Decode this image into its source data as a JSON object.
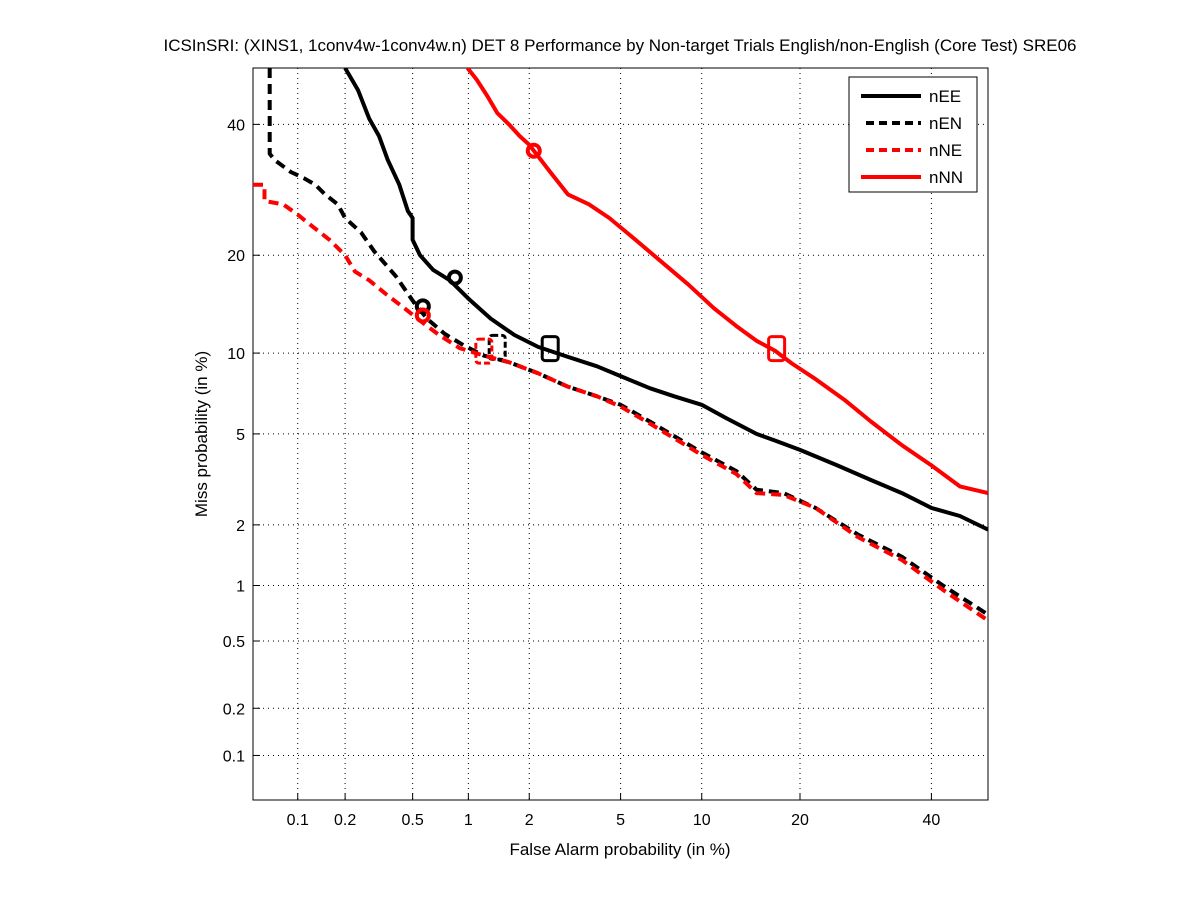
{
  "chart_data": {
    "type": "line",
    "scale": "normal-deviate",
    "title": "ICSInSRI: (XINS1, 1conv4w-1conv4w.n) DET 8 Performance by Non-target Trials English/non-English (Core Test) SRE06",
    "xlabel": "False Alarm probability (in %)",
    "ylabel": "Miss probability (in %)",
    "xlim": [
      0.05,
      50
    ],
    "ylim": [
      0.05,
      50
    ],
    "xticks": [
      0.1,
      0.2,
      0.5,
      1,
      2,
      5,
      10,
      20,
      40
    ],
    "xtick_labels": [
      "0.1",
      "0.2",
      "0.5",
      "1",
      "2",
      "5",
      "10",
      "20",
      "40"
    ],
    "yticks": [
      0.1,
      0.2,
      0.5,
      1,
      2,
      5,
      10,
      20,
      40
    ],
    "ytick_labels": [
      "0.1",
      "0.2",
      "0.5",
      "1",
      "2",
      "5",
      "10",
      "20",
      "40"
    ],
    "grid": true,
    "legend_position": "top-right",
    "series": [
      {
        "name": "nEE",
        "color": "#000000",
        "style": "solid",
        "x": [
          0.2,
          0.24,
          0.28,
          0.32,
          0.36,
          0.42,
          0.47,
          0.5,
          0.5,
          0.55,
          0.65,
          0.8,
          1.0,
          1.3,
          1.7,
          2.2,
          3,
          4,
          5,
          6.5,
          8,
          10,
          12,
          15,
          17,
          20,
          25,
          30,
          35,
          40,
          45,
          50
        ],
        "y": [
          50,
          46,
          41,
          38,
          34,
          30,
          26,
          25,
          22,
          20,
          18.2,
          17,
          15,
          13,
          11.5,
          10.5,
          9.7,
          9,
          8.3,
          7.5,
          7.0,
          6.5,
          5.8,
          5.0,
          4.7,
          4.3,
          3.7,
          3.2,
          2.8,
          2.4,
          2.2,
          1.9
        ],
        "markers": [
          {
            "type": "circle",
            "x": 0.85,
            "y": 17.3
          },
          {
            "type": "square",
            "x": 2.5,
            "y": 10.2
          }
        ]
      },
      {
        "name": "nEN",
        "color": "#000000",
        "style": "dashed",
        "x": [
          0.065,
          0.065,
          0.07,
          0.09,
          0.11,
          0.13,
          0.15,
          0.18,
          0.2,
          0.25,
          0.3,
          0.4,
          0.5,
          0.6,
          0.75,
          0.95,
          1.2,
          1.6,
          2.2,
          3,
          4,
          5,
          6.5,
          8,
          10,
          13,
          15,
          18,
          22,
          28,
          35,
          42,
          50
        ],
        "y": [
          50,
          35,
          34,
          32,
          31,
          30,
          28.5,
          27,
          25,
          23,
          20.5,
          17.5,
          14.8,
          13,
          11.6,
          10.6,
          9.8,
          9.3,
          8.5,
          7.6,
          7.0,
          6.5,
          5.6,
          4.9,
          4.2,
          3.5,
          2.9,
          2.8,
          2.4,
          1.8,
          1.4,
          1.0,
          0.7
        ],
        "markers": [
          {
            "type": "circle",
            "x": 0.57,
            "y": 14.2
          },
          {
            "type": "square",
            "x": 1.4,
            "y": 10.3
          }
        ]
      },
      {
        "name": "nNE",
        "color": "#ff0000",
        "style": "dashed",
        "x": [
          0.05,
          0.06,
          0.06,
          0.08,
          0.1,
          0.13,
          0.16,
          0.2,
          0.23,
          0.28,
          0.35,
          0.45,
          0.55,
          0.7,
          0.9,
          1.2,
          1.6,
          2.2,
          3,
          4,
          5,
          6.5,
          8,
          10,
          13,
          15,
          18,
          22,
          28,
          35,
          42,
          50
        ],
        "y": [
          30,
          30,
          27.5,
          27,
          25.5,
          23.5,
          22,
          20,
          18,
          17,
          15.5,
          14,
          12.8,
          11.5,
          10.4,
          9.8,
          9.3,
          8.5,
          7.6,
          7.0,
          6.4,
          5.5,
          4.8,
          4.1,
          3.4,
          2.8,
          2.75,
          2.4,
          1.75,
          1.35,
          0.95,
          0.65
        ],
        "markers": [
          {
            "type": "circle",
            "x": 0.57,
            "y": 13.3
          },
          {
            "type": "square",
            "x": 1.2,
            "y": 10.0
          }
        ]
      },
      {
        "name": "nNN",
        "color": "#ff0000",
        "style": "solid",
        "x": [
          0.99,
          1.1,
          1.25,
          1.4,
          1.6,
          1.8,
          2.0,
          2.1,
          2.5,
          3,
          3.7,
          4.5,
          5.5,
          7,
          9,
          11,
          13,
          15,
          17,
          19,
          22,
          26,
          30,
          35,
          40,
          45,
          50
        ],
        "y": [
          50,
          48,
          45,
          42,
          40,
          38,
          36.5,
          35.5,
          32,
          28.5,
          27,
          25,
          22.5,
          19.5,
          16.5,
          14,
          12.3,
          11,
          10.2,
          9.2,
          8.1,
          6.8,
          5.6,
          4.5,
          3.7,
          3.0,
          2.8
        ],
        "markers": [
          {
            "type": "circle",
            "x": 2.1,
            "y": 35.5
          },
          {
            "type": "square",
            "x": 17.2,
            "y": 10.2
          }
        ]
      }
    ]
  }
}
